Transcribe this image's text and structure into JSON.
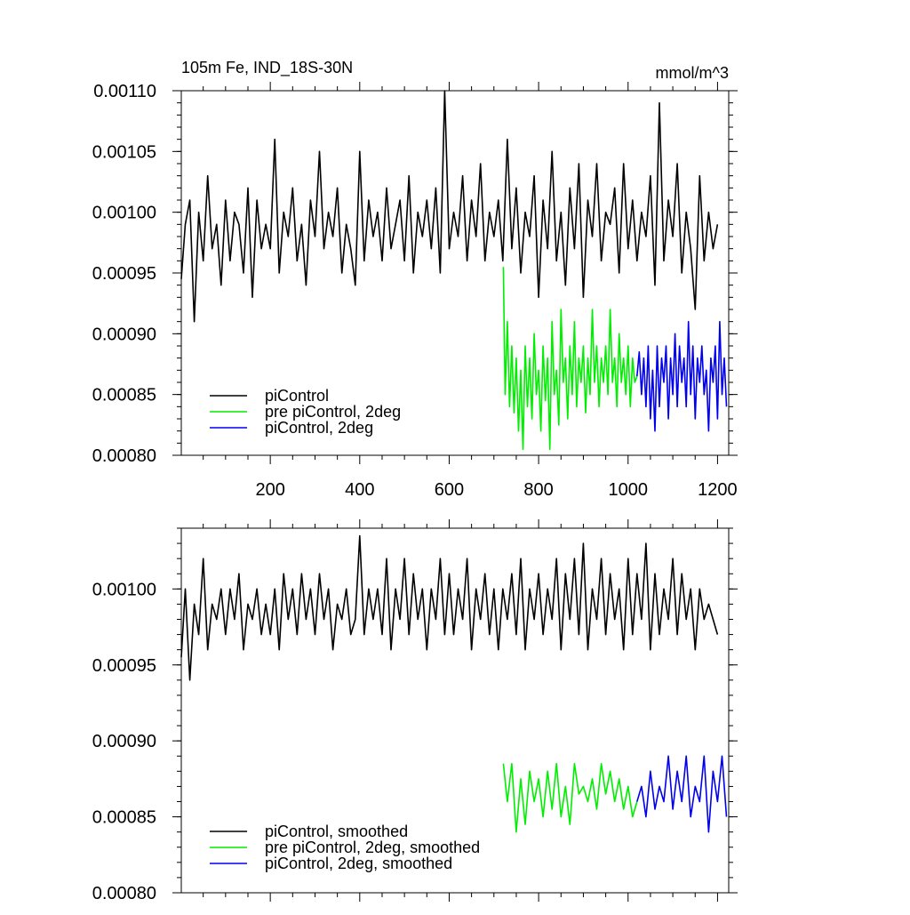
{
  "chart_data": [
    {
      "type": "line",
      "title": "105m Fe, IND_18S-30N",
      "units": "mmol/m^3",
      "xlim": [
        1,
        1225
      ],
      "ylim": [
        0.0008,
        0.0011
      ],
      "xticks": [
        200,
        400,
        600,
        800,
        1000,
        1200
      ],
      "xtick_labels": [
        "200",
        "400",
        "600",
        "800",
        "1000",
        "1200"
      ],
      "yticks": [
        0.0008,
        0.00085,
        0.0009,
        0.00095,
        0.001,
        0.00105,
        0.0011
      ],
      "ytick_labels": [
        "0.00080",
        "0.00085",
        "0.00090",
        "0.00095",
        "0.00100",
        "0.00105",
        "0.00110"
      ],
      "legend_position": "bottom-left",
      "series": [
        {
          "name": "piControl",
          "color": "#000000",
          "x": [
            1,
            10,
            20,
            30,
            40,
            50,
            60,
            70,
            80,
            90,
            100,
            110,
            120,
            130,
            140,
            150,
            160,
            170,
            180,
            190,
            200,
            210,
            220,
            230,
            240,
            250,
            260,
            270,
            280,
            290,
            300,
            310,
            320,
            330,
            340,
            350,
            360,
            370,
            380,
            390,
            400,
            410,
            420,
            430,
            440,
            450,
            460,
            470,
            480,
            490,
            500,
            510,
            520,
            530,
            540,
            550,
            560,
            570,
            580,
            590,
            600,
            610,
            620,
            630,
            640,
            650,
            660,
            670,
            680,
            690,
            700,
            710,
            720,
            730,
            740,
            750,
            760,
            770,
            780,
            790,
            800,
            810,
            820,
            830,
            840,
            850,
            860,
            870,
            880,
            890,
            900,
            910,
            920,
            930,
            940,
            950,
            960,
            970,
            980,
            990,
            1000,
            1010,
            1020,
            1030,
            1040,
            1050,
            1060,
            1070,
            1080,
            1090,
            1100,
            1110,
            1120,
            1130,
            1140,
            1150,
            1160,
            1170,
            1180,
            1190,
            1200
          ],
          "values": [
            0.000945,
            0.00099,
            0.00101,
            0.00091,
            0.001,
            0.00096,
            0.00103,
            0.00097,
            0.00099,
            0.00094,
            0.00101,
            0.00096,
            0.001,
            0.00099,
            0.00095,
            0.00102,
            0.00093,
            0.00101,
            0.00097,
            0.00099,
            0.00097,
            0.00106,
            0.00095,
            0.001,
            0.00098,
            0.00102,
            0.00096,
            0.00099,
            0.00094,
            0.00101,
            0.00098,
            0.00105,
            0.00097,
            0.001,
            0.00098,
            0.00102,
            0.00095,
            0.00099,
            0.00097,
            0.00094,
            0.00105,
            0.00096,
            0.00101,
            0.00098,
            0.001,
            0.00096,
            0.00102,
            0.00097,
            0.00099,
            0.00101,
            0.00096,
            0.00103,
            0.00095,
            0.001,
            0.00098,
            0.00101,
            0.00097,
            0.00102,
            0.00095,
            0.0011,
            0.00097,
            0.001,
            0.00098,
            0.00103,
            0.00096,
            0.00101,
            0.00098,
            0.00104,
            0.00096,
            0.001,
            0.00098,
            0.00101,
            0.00096,
            0.00106,
            0.00097,
            0.00102,
            0.00095,
            0.001,
            0.00098,
            0.00103,
            0.00093,
            0.00101,
            0.00097,
            0.00105,
            0.00096,
            0.001,
            0.00094,
            0.00102,
            0.00097,
            0.00104,
            0.00093,
            0.00101,
            0.00098,
            0.00104,
            0.00096,
            0.001,
            0.00099,
            0.00102,
            0.00095,
            0.00104,
            0.00097,
            0.00101,
            0.00096,
            0.001,
            0.00098,
            0.00103,
            0.00094,
            0.00109,
            0.00096,
            0.00101,
            0.00098,
            0.00104,
            0.00095,
            0.001,
            0.00097,
            0.00092,
            0.00103,
            0.00096,
            0.001,
            0.00097,
            0.00099
          ]
        },
        {
          "name": "pre piControl, 2deg",
          "color": "#00ee00",
          "x": [
            721,
            725,
            730,
            735,
            740,
            745,
            750,
            755,
            760,
            765,
            770,
            775,
            780,
            785,
            790,
            795,
            800,
            805,
            810,
            815,
            820,
            825,
            830,
            835,
            840,
            845,
            850,
            855,
            860,
            865,
            870,
            875,
            880,
            885,
            890,
            895,
            900,
            905,
            910,
            915,
            920,
            925,
            930,
            935,
            940,
            945,
            950,
            955,
            960,
            965,
            970,
            975,
            980,
            985,
            990,
            995,
            1000,
            1005,
            1010,
            1015,
            1020
          ],
          "values": [
            0.000955,
            0.00085,
            0.00091,
            0.00084,
            0.00089,
            0.000835,
            0.00088,
            0.00082,
            0.00087,
            0.000805,
            0.00089,
            0.00084,
            0.00088,
            0.00083,
            0.0009,
            0.00085,
            0.00087,
            0.00082,
            0.00089,
            0.000845,
            0.00088,
            0.000805,
            0.00091,
            0.00085,
            0.00087,
            0.000825,
            0.00092,
            0.00086,
            0.00088,
            0.00083,
            0.00089,
            0.00085,
            0.00091,
            0.00084,
            0.00088,
            0.00086,
            0.00089,
            0.000835,
            0.00088,
            0.00085,
            0.00092,
            0.00086,
            0.00089,
            0.00084,
            0.00088,
            0.00086,
            0.00089,
            0.00085,
            0.00092,
            0.00086,
            0.00088,
            0.00084,
            0.0009,
            0.00086,
            0.00088,
            0.00085,
            0.00089,
            0.00084,
            0.00088,
            0.00086,
            0.000865
          ]
        },
        {
          "name": "piControl, 2deg",
          "color": "#0000ee",
          "x": [
            1020,
            1025,
            1030,
            1035,
            1040,
            1045,
            1050,
            1055,
            1060,
            1065,
            1070,
            1075,
            1080,
            1085,
            1090,
            1095,
            1100,
            1105,
            1110,
            1115,
            1120,
            1125,
            1130,
            1135,
            1140,
            1145,
            1150,
            1155,
            1160,
            1165,
            1170,
            1175,
            1180,
            1185,
            1190,
            1195,
            1200,
            1205,
            1210,
            1215,
            1220
          ],
          "values": [
            0.000865,
            0.000885,
            0.00085,
            0.00088,
            0.00084,
            0.00089,
            0.00083,
            0.00087,
            0.00082,
            0.00089,
            0.00084,
            0.00088,
            0.00086,
            0.00089,
            0.00083,
            0.00088,
            0.00085,
            0.0009,
            0.00084,
            0.00089,
            0.00086,
            0.00088,
            0.00084,
            0.00091,
            0.00085,
            0.00089,
            0.00083,
            0.00088,
            0.00086,
            0.00089,
            0.00085,
            0.00087,
            0.00082,
            0.00088,
            0.00086,
            0.00089,
            0.00083,
            0.00091,
            0.00085,
            0.00088,
            0.00084
          ]
        }
      ]
    },
    {
      "type": "line",
      "title": "",
      "xlim": [
        1,
        1225
      ],
      "ylim": [
        0.0008,
        0.00104
      ],
      "xticks": [
        200,
        400,
        600,
        800,
        1000,
        1200
      ],
      "yticks": [
        0.0008,
        0.00085,
        0.0009,
        0.00095,
        0.001
      ],
      "ytick_labels": [
        "0.00080",
        "0.00085",
        "0.00090",
        "0.00095",
        "0.00100"
      ],
      "legend_position": "bottom-left",
      "series": [
        {
          "name": "piControl, smoothed",
          "color": "#000000",
          "x": [
            1,
            10,
            20,
            30,
            40,
            50,
            60,
            70,
            80,
            90,
            100,
            110,
            120,
            130,
            140,
            150,
            160,
            170,
            180,
            190,
            200,
            210,
            220,
            230,
            240,
            250,
            260,
            270,
            280,
            290,
            300,
            310,
            320,
            330,
            340,
            350,
            360,
            370,
            380,
            390,
            400,
            410,
            420,
            430,
            440,
            450,
            460,
            470,
            480,
            490,
            500,
            510,
            520,
            530,
            540,
            550,
            560,
            570,
            580,
            590,
            600,
            610,
            620,
            630,
            640,
            650,
            660,
            670,
            680,
            690,
            700,
            710,
            720,
            730,
            740,
            750,
            760,
            770,
            780,
            790,
            800,
            810,
            820,
            830,
            840,
            850,
            860,
            870,
            880,
            890,
            900,
            910,
            920,
            930,
            940,
            950,
            960,
            970,
            980,
            990,
            1000,
            1010,
            1020,
            1030,
            1040,
            1050,
            1060,
            1070,
            1080,
            1090,
            1100,
            1110,
            1120,
            1130,
            1140,
            1150,
            1160,
            1170,
            1180,
            1190,
            1200
          ],
          "values": [
            0.000955,
            0.001,
            0.00094,
            0.00099,
            0.00097,
            0.00102,
            0.00096,
            0.00099,
            0.00098,
            0.001,
            0.00097,
            0.001,
            0.00098,
            0.00101,
            0.00096,
            0.00099,
            0.00098,
            0.001,
            0.00097,
            0.00099,
            0.00097,
            0.001,
            0.00096,
            0.00101,
            0.00098,
            0.001,
            0.00097,
            0.00101,
            0.00098,
            0.001,
            0.00097,
            0.00101,
            0.00098,
            0.001,
            0.00096,
            0.00099,
            0.00098,
            0.001,
            0.00097,
            0.00098,
            0.001035,
            0.00097,
            0.001,
            0.00098,
            0.001,
            0.00097,
            0.00102,
            0.00096,
            0.001,
            0.00098,
            0.00102,
            0.00097,
            0.00101,
            0.00098,
            0.001,
            0.00096,
            0.001,
            0.00098,
            0.00102,
            0.00097,
            0.00101,
            0.00097,
            0.001,
            0.00098,
            0.00102,
            0.00096,
            0.001,
            0.00098,
            0.00101,
            0.00097,
            0.001,
            0.00096,
            0.001,
            0.00098,
            0.00101,
            0.00097,
            0.00102,
            0.00096,
            0.001,
            0.00098,
            0.00101,
            0.00097,
            0.001,
            0.00098,
            0.00102,
            0.00096,
            0.00101,
            0.00098,
            0.00102,
            0.00097,
            0.00103,
            0.00096,
            0.001,
            0.00098,
            0.00102,
            0.00097,
            0.00101,
            0.00098,
            0.001,
            0.00096,
            0.00102,
            0.00097,
            0.00101,
            0.00098,
            0.00103,
            0.00096,
            0.00101,
            0.00097,
            0.001,
            0.00098,
            0.00102,
            0.00097,
            0.00101,
            0.00098,
            0.001,
            0.00096,
            0.001,
            0.00098,
            0.00099,
            0.00098,
            0.00097
          ]
        },
        {
          "name": "pre piControl, 2deg, smoothed",
          "color": "#00ee00",
          "x": [
            721,
            730,
            740,
            750,
            760,
            770,
            780,
            790,
            800,
            810,
            820,
            830,
            840,
            850,
            860,
            870,
            880,
            890,
            900,
            910,
            920,
            930,
            940,
            950,
            960,
            970,
            980,
            990,
            1000,
            1010,
            1020
          ],
          "values": [
            0.000885,
            0.00086,
            0.000885,
            0.00084,
            0.000875,
            0.000845,
            0.00088,
            0.00086,
            0.000875,
            0.00085,
            0.00088,
            0.000855,
            0.000885,
            0.00085,
            0.00087,
            0.000845,
            0.000885,
            0.000865,
            0.00087,
            0.00086,
            0.000875,
            0.000855,
            0.000885,
            0.000865,
            0.00088,
            0.00086,
            0.000875,
            0.000855,
            0.00087,
            0.00085,
            0.00086
          ]
        },
        {
          "name": "piControl, 2deg, smoothed",
          "color": "#0000ee",
          "x": [
            1020,
            1030,
            1040,
            1050,
            1060,
            1070,
            1080,
            1090,
            1100,
            1110,
            1120,
            1130,
            1140,
            1150,
            1160,
            1170,
            1180,
            1190,
            1200,
            1210,
            1220
          ],
          "values": [
            0.00086,
            0.00087,
            0.00085,
            0.00088,
            0.000855,
            0.00087,
            0.00086,
            0.00089,
            0.000855,
            0.00088,
            0.00086,
            0.00089,
            0.00085,
            0.00087,
            0.00086,
            0.00089,
            0.00084,
            0.00088,
            0.00086,
            0.00089,
            0.00085
          ]
        }
      ]
    }
  ]
}
